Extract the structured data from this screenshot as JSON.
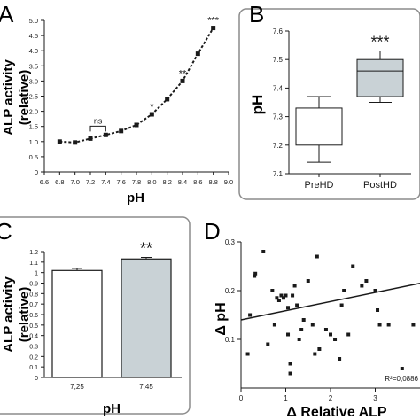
{
  "chart_data": [
    {
      "panel": "A",
      "type": "line",
      "ylabel": "ALP activity (relative)",
      "ylabel_lines": [
        "ALP activity",
        "(relative)"
      ],
      "xlabel": "pH",
      "xlim": [
        6.6,
        9.0
      ],
      "ylim": [
        0,
        5.0
      ],
      "xticks": [
        "6.6",
        "6.8",
        "7.0",
        "7.2",
        "7.4",
        "7.6",
        "7.8",
        "8.0",
        "8.2",
        "8.4",
        "8.6",
        "8.8",
        "9.0"
      ],
      "yticks": [
        "0",
        "0.5",
        "1.0",
        "1.5",
        "2.0",
        "2.5",
        "3.0",
        "3.5",
        "4.0",
        "4.5",
        "5.0"
      ],
      "x": [
        6.8,
        7.0,
        7.2,
        7.4,
        7.6,
        7.8,
        8.0,
        8.2,
        8.4,
        8.6,
        8.8
      ],
      "y": [
        1.0,
        0.97,
        1.1,
        1.22,
        1.35,
        1.55,
        1.9,
        2.4,
        3.0,
        3.9,
        4.75
      ],
      "annotations": [
        {
          "text": "ns",
          "x": 7.2,
          "x2": 7.4
        },
        {
          "text": "*",
          "x": 8.0
        },
        {
          "text": "**",
          "x": 8.4
        },
        {
          "text": "***",
          "x": 8.8
        }
      ]
    },
    {
      "panel": "B",
      "type": "box",
      "ylabel": "pH",
      "ylim": [
        7.1,
        7.6
      ],
      "yticks": [
        "7.1",
        "7.2",
        "7.3",
        "7.4",
        "7.5",
        "7.6"
      ],
      "categories": [
        "PreHD",
        "PostHD"
      ],
      "boxes": [
        {
          "whisker_low": 7.14,
          "q1": 7.2,
          "median": 7.26,
          "q3": 7.33,
          "whisker_high": 7.37,
          "fill": "#ffffff"
        },
        {
          "whisker_low": 7.35,
          "q1": 7.37,
          "median": 7.46,
          "q3": 7.5,
          "whisker_high": 7.53,
          "fill": "#c9d2d6"
        }
      ],
      "annotation": "***"
    },
    {
      "panel": "C",
      "type": "bar",
      "ylabel": "ALP activity (relative)",
      "ylabel_lines": [
        "ALP activity",
        "(relative)"
      ],
      "xlabel": "pH",
      "ylim": [
        0,
        1.2
      ],
      "yticks": [
        "0",
        "0.1",
        "0.2",
        "0.3",
        "0.4",
        "0.5",
        "0.6",
        "0.7",
        "0.8",
        "0.9",
        "1",
        "1.1",
        "1.2"
      ],
      "categories": [
        "7,25",
        "7,45"
      ],
      "values": [
        1.02,
        1.13
      ],
      "errors": [
        0.02,
        0.015
      ],
      "fills": [
        "#ffffff",
        "#c9d2d6"
      ],
      "annotation": "**"
    },
    {
      "panel": "D",
      "type": "scatter",
      "ylabel": "Δ pH",
      "xlabel": "Δ Relative ALP",
      "xlim": [
        0,
        4
      ],
      "ylim": [
        0,
        0.3
      ],
      "xticks": [
        "0",
        "1",
        "2",
        "3"
      ],
      "yticks": [
        "0.1",
        "0.2",
        "0.3"
      ],
      "points": [
        [
          0.15,
          0.07
        ],
        [
          0.3,
          0.23
        ],
        [
          0.32,
          0.235
        ],
        [
          0.2,
          0.15
        ],
        [
          0.6,
          0.09
        ],
        [
          0.7,
          0.2
        ],
        [
          0.75,
          0.13
        ],
        [
          0.8,
          0.185
        ],
        [
          0.85,
          0.18
        ],
        [
          0.9,
          0.19
        ],
        [
          0.95,
          0.185
        ],
        [
          1.0,
          0.19
        ],
        [
          1.05,
          0.165
        ],
        [
          1.05,
          0.11
        ],
        [
          1.1,
          0.05
        ],
        [
          1.1,
          0.03
        ],
        [
          1.15,
          0.19
        ],
        [
          1.2,
          0.21
        ],
        [
          1.25,
          0.17
        ],
        [
          1.3,
          0.1
        ],
        [
          1.35,
          0.12
        ],
        [
          1.4,
          0.14
        ],
        [
          1.5,
          0.22
        ],
        [
          1.6,
          0.13
        ],
        [
          1.65,
          0.07
        ],
        [
          1.7,
          0.27
        ],
        [
          1.75,
          0.08
        ],
        [
          1.9,
          0.12
        ],
        [
          2.0,
          0.11
        ],
        [
          2.1,
          0.1
        ],
        [
          2.2,
          0.06
        ],
        [
          2.25,
          0.17
        ],
        [
          2.3,
          0.2
        ],
        [
          2.4,
          0.11
        ],
        [
          2.5,
          0.25
        ],
        [
          2.7,
          0.21
        ],
        [
          2.8,
          0.22
        ],
        [
          3.0,
          0.2
        ],
        [
          3.05,
          0.16
        ],
        [
          3.1,
          0.13
        ],
        [
          3.3,
          0.13
        ],
        [
          3.6,
          0.04
        ],
        [
          3.85,
          0.13
        ],
        [
          0.5,
          0.28
        ]
      ],
      "fit": {
        "x": [
          0.0,
          4.0
        ],
        "y": [
          0.14,
          0.215
        ]
      },
      "annotation": "R²=0,0886"
    }
  ],
  "panel_labels": [
    "A",
    "B",
    "C",
    "D"
  ],
  "colors": {
    "ink": "#1a1a1a",
    "gray_fill": "#c9d2d6",
    "border": "#8c8c8c",
    "line": "#333333"
  }
}
